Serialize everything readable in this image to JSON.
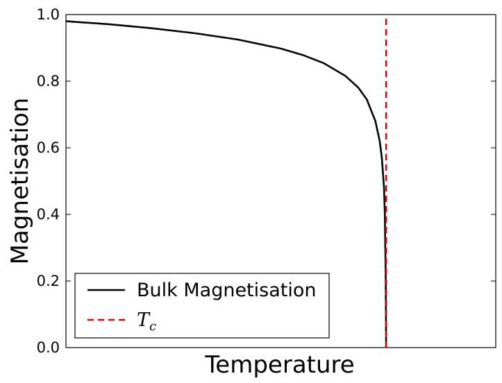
{
  "chart_data": {
    "type": "line",
    "title": "",
    "xlabel": "Temperature",
    "ylabel": "Magnetisation",
    "xlim": [
      0,
      1
    ],
    "ylim": [
      0,
      1
    ],
    "xticks_visible": false,
    "yticks": [
      "0.0",
      "0.2",
      "0.4",
      "0.6",
      "0.8",
      "1.0"
    ],
    "grid": false,
    "legend_position": "lower-left",
    "series": [
      {
        "name": "Bulk Magnetisation",
        "style": "solid",
        "color": "#000000",
        "x": [
          0.0,
          0.1,
          0.2,
          0.3,
          0.4,
          0.5,
          0.55,
          0.6,
          0.65,
          0.68,
          0.7,
          0.72,
          0.73,
          0.735,
          0.74,
          0.742,
          0.744,
          0.745
        ],
        "y": [
          0.98,
          0.971,
          0.959,
          0.944,
          0.925,
          0.898,
          0.879,
          0.854,
          0.816,
          0.781,
          0.745,
          0.68,
          0.62,
          0.57,
          0.48,
          0.4,
          0.2,
          0.0
        ]
      },
      {
        "name": "T_c",
        "legend_symbol": "T",
        "legend_subscript": "c",
        "style": "dashed",
        "color": "#e00000",
        "x": [
          0.745,
          0.745
        ],
        "y": [
          0.0,
          1.0
        ]
      }
    ]
  }
}
